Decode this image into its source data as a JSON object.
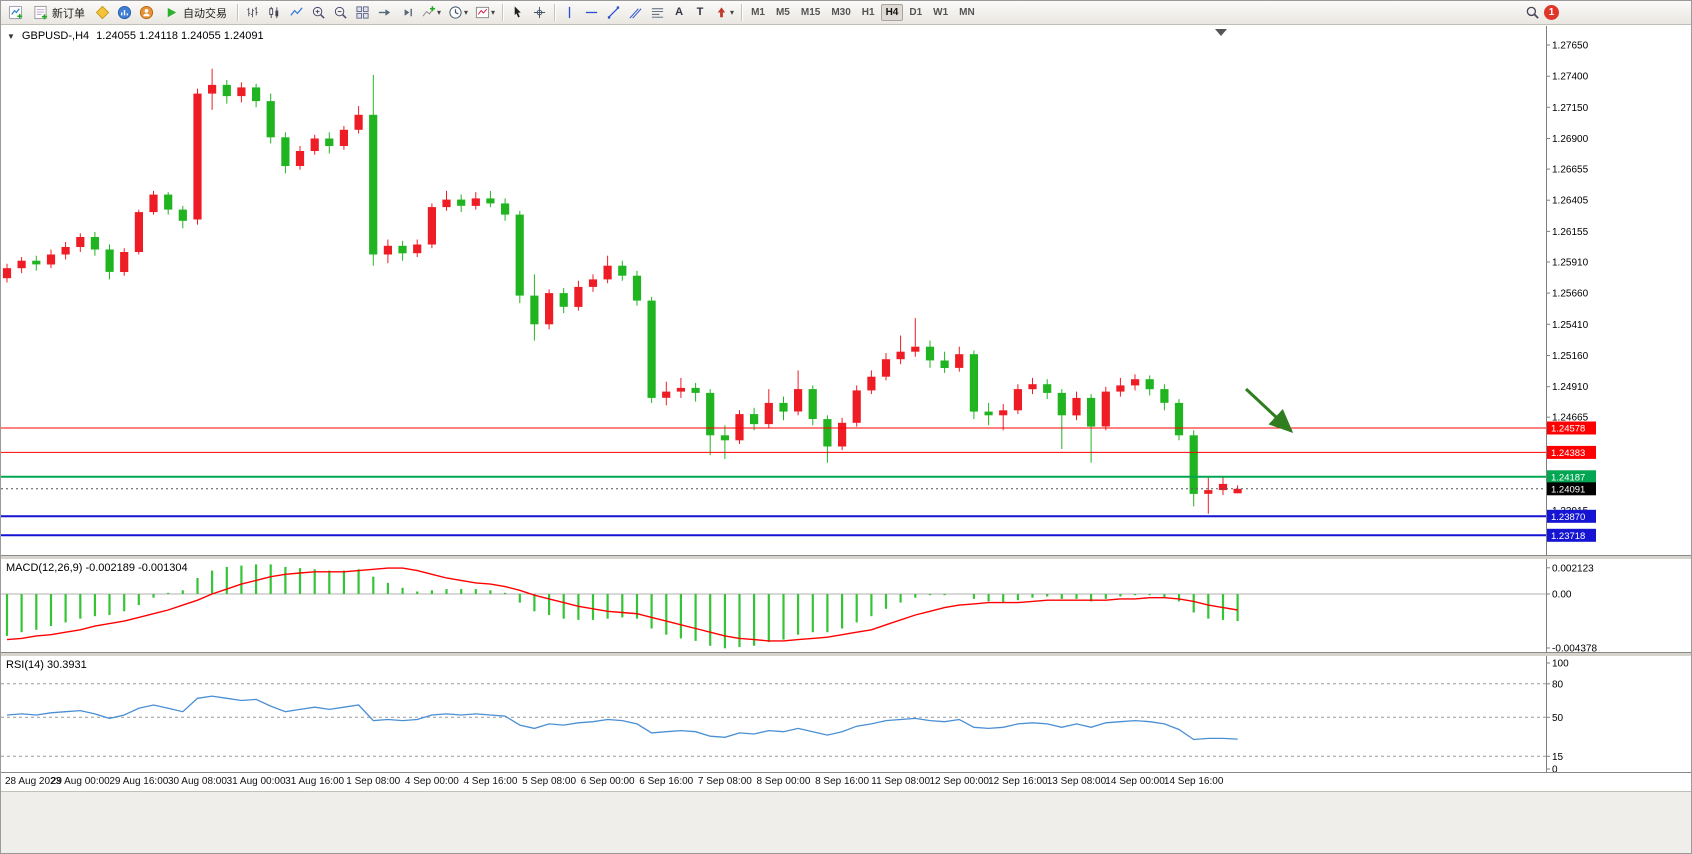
{
  "colors": {
    "up": "#ee1c25",
    "down": "#21b421",
    "macd_bar": "#35c435",
    "macd_signal": "#ff0000",
    "rsi_line": "#4a8fd4",
    "bid_badge": "#000000",
    "arrow": "#2f7d1e",
    "axis_text": "#000000"
  },
  "toolbar": {
    "new_order": "新订单",
    "auto_trading": "自动交易",
    "timeframes": [
      "M1",
      "M5",
      "M15",
      "M30",
      "H1",
      "H4",
      "D1",
      "W1",
      "MN"
    ],
    "active_timeframe": "H4",
    "notification": "1"
  },
  "chart": {
    "collapse_arrow": "▼",
    "symbol": "GBPUSD-,H4",
    "ohlc": "1.24055 1.24118 1.24055 1.24091",
    "bid": "1.24091",
    "price_axis": [
      "1.27650",
      "1.27400",
      "1.27150",
      "1.26900",
      "1.26655",
      "1.26405",
      "1.26155",
      "1.25910",
      "1.25660",
      "1.25410",
      "1.25160",
      "1.24910",
      "1.24665",
      "1.23915"
    ],
    "levels": [
      {
        "price": "1.24578",
        "color": "#ff0000",
        "width": 1
      },
      {
        "price": "1.24383",
        "color": "#ff0000",
        "width": 1
      },
      {
        "price": "1.24187",
        "color": "#00a651",
        "width": 2
      },
      {
        "price": "1.23870",
        "color": "#1414d2",
        "width": 2
      },
      {
        "price": "1.23718",
        "color": "#1414d2",
        "width": 2
      }
    ]
  },
  "macd": {
    "label": "MACD(12,26,9) -0.002189 -0.001304",
    "axis": [
      "0.002123",
      "0.00",
      "-0.004378"
    ]
  },
  "rsi": {
    "label": "RSI(14) 30.3931",
    "axis": [
      "100",
      "80",
      "50",
      "15",
      "0"
    ],
    "levels": [
      80,
      50,
      15
    ]
  },
  "chart_data": {
    "type": "candlestick",
    "symbol": "GBPUSD-,H4",
    "timeframe": "H4",
    "ylim": [
      1.2367,
      1.2765
    ],
    "candles": [
      [
        1.2578,
        1.25895,
        1.25745,
        1.2586
      ],
      [
        1.2586,
        1.2595,
        1.2582,
        1.2592
      ],
      [
        1.2592,
        1.2596,
        1.2584,
        1.2589
      ],
      [
        1.2589,
        1.2601,
        1.2586,
        1.2597
      ],
      [
        1.2597,
        1.2607,
        1.2593,
        1.2603
      ],
      [
        1.2603,
        1.2614,
        1.2599,
        1.2611
      ],
      [
        1.2611,
        1.2615,
        1.2596,
        1.2601
      ],
      [
        1.2601,
        1.2605,
        1.2577,
        1.2583
      ],
      [
        1.2583,
        1.2602,
        1.258,
        1.2599
      ],
      [
        1.2599,
        1.2633,
        1.2597,
        1.2631
      ],
      [
        1.2631,
        1.2648,
        1.2629,
        1.2645
      ],
      [
        1.2645,
        1.2647,
        1.2629,
        1.2633
      ],
      [
        1.2633,
        1.2636,
        1.2618,
        1.2624
      ],
      [
        1.2625,
        1.273,
        1.2621,
        1.2726
      ],
      [
        1.2726,
        1.2746,
        1.2713,
        1.2733
      ],
      [
        1.2733,
        1.2737,
        1.2718,
        1.2724
      ],
      [
        1.2724,
        1.2735,
        1.2719,
        1.2731
      ],
      [
        1.2731,
        1.2734,
        1.2715,
        1.272
      ],
      [
        1.272,
        1.2726,
        1.2686,
        1.2691
      ],
      [
        1.2691,
        1.2695,
        1.2662,
        1.2668
      ],
      [
        1.2668,
        1.2684,
        1.2665,
        1.268
      ],
      [
        1.268,
        1.2693,
        1.2677,
        1.269
      ],
      [
        1.269,
        1.2695,
        1.2678,
        1.2684
      ],
      [
        1.2684,
        1.27,
        1.2681,
        1.2697
      ],
      [
        1.2697,
        1.2716,
        1.2694,
        1.2709
      ],
      [
        1.2709,
        1.2741,
        1.2588,
        1.2597
      ],
      [
        1.2597,
        1.2609,
        1.259,
        1.2604
      ],
      [
        1.2604,
        1.2608,
        1.2592,
        1.2598
      ],
      [
        1.2598,
        1.2609,
        1.2595,
        1.2605
      ],
      [
        1.2605,
        1.2638,
        1.2602,
        1.2635
      ],
      [
        1.2635,
        1.2648,
        1.2632,
        1.2641
      ],
      [
        1.2641,
        1.2645,
        1.2631,
        1.2636
      ],
      [
        1.2636,
        1.2647,
        1.2633,
        1.2642
      ],
      [
        1.2642,
        1.2648,
        1.2635,
        1.2638
      ],
      [
        1.2638,
        1.2642,
        1.2624,
        1.2629
      ],
      [
        1.2629,
        1.2632,
        1.2558,
        1.2564
      ],
      [
        1.2564,
        1.2581,
        1.2528,
        1.2541
      ],
      [
        1.2541,
        1.2569,
        1.2537,
        1.2566
      ],
      [
        1.2566,
        1.257,
        1.255,
        1.2555
      ],
      [
        1.2555,
        1.2576,
        1.2552,
        1.2571
      ],
      [
        1.2571,
        1.2581,
        1.2567,
        1.2577
      ],
      [
        1.2577,
        1.2596,
        1.2574,
        1.2588
      ],
      [
        1.2588,
        1.2592,
        1.2576,
        1.258
      ],
      [
        1.258,
        1.2584,
        1.2556,
        1.256
      ],
      [
        1.256,
        1.2563,
        1.2478,
        1.2482
      ],
      [
        1.2482,
        1.2495,
        1.2476,
        1.2487
      ],
      [
        1.2487,
        1.2498,
        1.2482,
        1.249
      ],
      [
        1.249,
        1.2494,
        1.2479,
        1.2486
      ],
      [
        1.2486,
        1.2489,
        1.2436,
        1.2452
      ],
      [
        1.2452,
        1.246,
        1.2433,
        1.2448
      ],
      [
        1.2448,
        1.2472,
        1.2445,
        1.2469
      ],
      [
        1.2469,
        1.2474,
        1.2456,
        1.2461
      ],
      [
        1.2461,
        1.2489,
        1.2458,
        1.2478
      ],
      [
        1.2478,
        1.2483,
        1.2464,
        1.2471
      ],
      [
        1.2471,
        1.2504,
        1.2468,
        1.2489
      ],
      [
        1.2489,
        1.2492,
        1.246,
        1.2465
      ],
      [
        1.2465,
        1.2468,
        1.243,
        1.2443
      ],
      [
        1.2443,
        1.2466,
        1.244,
        1.2462
      ],
      [
        1.2462,
        1.2492,
        1.2459,
        1.2488
      ],
      [
        1.2488,
        1.2504,
        1.2485,
        1.2499
      ],
      [
        1.2499,
        1.2518,
        1.2496,
        1.2513
      ],
      [
        1.2513,
        1.2532,
        1.2509,
        1.2519
      ],
      [
        1.2519,
        1.2546,
        1.2515,
        1.2523
      ],
      [
        1.2523,
        1.2528,
        1.2506,
        1.2512
      ],
      [
        1.2512,
        1.2519,
        1.2502,
        1.2506
      ],
      [
        1.2506,
        1.2523,
        1.2503,
        1.2517
      ],
      [
        1.2517,
        1.252,
        1.2465,
        1.2471
      ],
      [
        1.2471,
        1.2478,
        1.246,
        1.2468
      ],
      [
        1.2468,
        1.2477,
        1.2456,
        1.2472
      ],
      [
        1.2472,
        1.2493,
        1.2469,
        1.2489
      ],
      [
        1.2489,
        1.2498,
        1.2485,
        1.2493
      ],
      [
        1.2493,
        1.2497,
        1.2481,
        1.2486
      ],
      [
        1.2486,
        1.2489,
        1.2441,
        1.2468
      ],
      [
        1.2468,
        1.2487,
        1.2464,
        1.2482
      ],
      [
        1.2482,
        1.2485,
        1.243,
        1.2459
      ],
      [
        1.2459,
        1.2491,
        1.2456,
        1.2487
      ],
      [
        1.2487,
        1.2498,
        1.2483,
        1.2492
      ],
      [
        1.2492,
        1.2501,
        1.2488,
        1.2497
      ],
      [
        1.2497,
        1.25,
        1.2484,
        1.2489
      ],
      [
        1.2489,
        1.2493,
        1.2472,
        1.2478
      ],
      [
        1.2478,
        1.2481,
        1.2448,
        1.2452
      ],
      [
        1.2452,
        1.2456,
        1.2395,
        1.2405
      ],
      [
        1.2405,
        1.2418,
        1.2389,
        1.2408
      ],
      [
        1.2408,
        1.2419,
        1.2404,
        1.2413
      ],
      [
        1.24055,
        1.24118,
        1.24055,
        1.24091
      ]
    ],
    "macd": {
      "type": "bar+line",
      "ylim": [
        -0.004378,
        0.002123
      ],
      "current": [
        -0.002189,
        -0.001304
      ],
      "histogram": [
        -0.0034,
        -0.0031,
        -0.0029,
        -0.0026,
        -0.0023,
        -0.002,
        -0.0018,
        -0.0017,
        -0.0014,
        -0.0009,
        -0.0003,
        0.0001,
        0.0003,
        0.0013,
        0.0019,
        0.0022,
        0.0023,
        0.0024,
        0.0024,
        0.0022,
        0.0021,
        0.002,
        0.0019,
        0.0019,
        0.002,
        0.0014,
        0.0009,
        0.0005,
        0.0002,
        0.0003,
        0.0004,
        0.0004,
        0.0004,
        0.0003,
        0.0001,
        -0.0007,
        -0.0014,
        -0.0017,
        -0.002,
        -0.0021,
        -0.0021,
        -0.002,
        -0.0019,
        -0.002,
        -0.0028,
        -0.0033,
        -0.0036,
        -0.0038,
        -0.0042,
        -0.0044,
        -0.0043,
        -0.0042,
        -0.0039,
        -0.0037,
        -0.0033,
        -0.0031,
        -0.0031,
        -0.0028,
        -0.0023,
        -0.0018,
        -0.0012,
        -0.0007,
        -0.0003,
        -0.0001,
        -0.0001,
        0.0,
        -0.0004,
        -0.0006,
        -0.0007,
        -0.0005,
        -0.0003,
        -0.0002,
        -0.0004,
        -0.0004,
        -0.0006,
        -0.0004,
        -0.0002,
        -0.0001,
        -0.0001,
        -0.0003,
        -0.0006,
        -0.0015,
        -0.002,
        -0.0021,
        -0.0022
      ],
      "signal": [
        -0.0037,
        -0.0036,
        -0.0034,
        -0.0033,
        -0.0031,
        -0.0029,
        -0.0026,
        -0.0024,
        -0.0022,
        -0.0019,
        -0.0016,
        -0.0013,
        -0.0009,
        -0.0005,
        0.0,
        0.0004,
        0.0008,
        0.0011,
        0.0014,
        0.0016,
        0.0017,
        0.0018,
        0.0018,
        0.0018,
        0.0019,
        0.002,
        0.0021,
        0.0021,
        0.0019,
        0.0016,
        0.0013,
        0.0011,
        0.0009,
        0.0008,
        0.0006,
        0.0003,
        -0.0001,
        -0.0004,
        -0.0007,
        -0.001,
        -0.0012,
        -0.0014,
        -0.0015,
        -0.0016,
        -0.0019,
        -0.0022,
        -0.0025,
        -0.0028,
        -0.0031,
        -0.0034,
        -0.0036,
        -0.0037,
        -0.0038,
        -0.0038,
        -0.0037,
        -0.0036,
        -0.0035,
        -0.0033,
        -0.0031,
        -0.0029,
        -0.0025,
        -0.0021,
        -0.0017,
        -0.0014,
        -0.0011,
        -0.0009,
        -0.0008,
        -0.0007,
        -0.0007,
        -0.0007,
        -0.0006,
        -0.0005,
        -0.0005,
        -0.0005,
        -0.0005,
        -0.0005,
        -0.0004,
        -0.0004,
        -0.0003,
        -0.0003,
        -0.0004,
        -0.0006,
        -0.0009,
        -0.0011,
        -0.0013
      ]
    },
    "rsi": {
      "type": "line",
      "ylim": [
        0,
        100
      ],
      "current": 30.3931,
      "values": [
        52,
        53,
        52,
        54,
        55,
        56,
        53,
        49,
        52,
        58,
        61,
        58,
        55,
        67,
        69,
        67,
        65,
        66,
        60,
        55,
        57,
        59,
        57,
        59,
        61,
        47,
        48,
        47,
        48,
        52,
        53,
        52,
        53,
        52,
        51,
        43,
        40,
        44,
        43,
        45,
        46,
        48,
        47,
        44,
        36,
        37,
        38,
        37,
        33,
        32,
        36,
        35,
        38,
        37,
        40,
        37,
        34,
        37,
        42,
        44,
        47,
        48,
        49,
        47,
        46,
        48,
        41,
        40,
        41,
        44,
        45,
        44,
        41,
        44,
        41,
        45,
        46,
        47,
        46,
        44,
        39,
        30,
        31,
        31,
        30.39
      ]
    },
    "time_labels": [
      {
        "i": 1,
        "t": "28 Aug 2023"
      },
      {
        "i": 5,
        "t": "29 Aug 00:00"
      },
      {
        "i": 9,
        "t": "29 Aug 16:00"
      },
      {
        "i": 13,
        "t": "30 Aug 08:00"
      },
      {
        "i": 17,
        "t": "31 Aug 00:00"
      },
      {
        "i": 21,
        "t": "31 Aug 16:00"
      },
      {
        "i": 25,
        "t": "1 Sep 08:00"
      },
      {
        "i": 29,
        "t": "4 Sep 00:00"
      },
      {
        "i": 33,
        "t": "4 Sep 16:00"
      },
      {
        "i": 37,
        "t": "5 Sep 08:00"
      },
      {
        "i": 41,
        "t": "6 Sep 00:00"
      },
      {
        "i": 45,
        "t": "6 Sep 16:00"
      },
      {
        "i": 49,
        "t": "7 Sep 08:00"
      },
      {
        "i": 53,
        "t": "8 Sep 00:00"
      },
      {
        "i": 57,
        "t": "8 Sep 16:00"
      },
      {
        "i": 61,
        "t": "11 Sep 08:00"
      },
      {
        "i": 65,
        "t": "12 Sep 00:00"
      },
      {
        "i": 69,
        "t": "12 Sep 16:00"
      },
      {
        "i": 73,
        "t": "13 Sep 08:00"
      },
      {
        "i": 77,
        "t": "14 Sep 00:00"
      },
      {
        "i": 81,
        "t": "14 Sep 16:00"
      }
    ]
  }
}
